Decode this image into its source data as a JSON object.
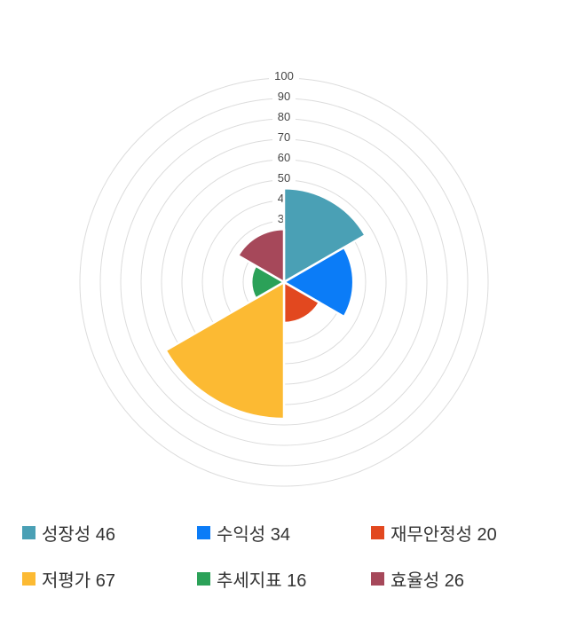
{
  "chart_data": {
    "type": "polar-area",
    "title": "",
    "categories": [
      "성장성",
      "수익성",
      "재무안정성",
      "저평가",
      "추세지표",
      "효율성"
    ],
    "values": [
      46,
      34,
      20,
      67,
      16,
      26
    ],
    "colors": [
      "#4aa0b5",
      "#0b7cf7",
      "#e2481f",
      "#fcba33",
      "#2ba158",
      "#a6485a"
    ],
    "rmax": 100,
    "ticks": [
      10,
      20,
      30,
      40,
      50,
      60,
      70,
      80,
      90,
      100
    ],
    "start_angle_deg": 0,
    "sector_span_deg": 60,
    "grid": true,
    "gridline_color": "#dcdcdc",
    "tick_label_color": "#444444",
    "sector_border_color": "#ffffff",
    "legend_position": "bottom"
  },
  "legend": {
    "items": [
      {
        "label": "성장성 46",
        "color": "#4aa0b5"
      },
      {
        "label": "수익성 34",
        "color": "#0b7cf7"
      },
      {
        "label": "재무안정성 20",
        "color": "#e2481f"
      },
      {
        "label": "저평가 67",
        "color": "#fcba33"
      },
      {
        "label": "추세지표 16",
        "color": "#2ba158"
      },
      {
        "label": "효율성 26",
        "color": "#a6485a"
      }
    ]
  }
}
